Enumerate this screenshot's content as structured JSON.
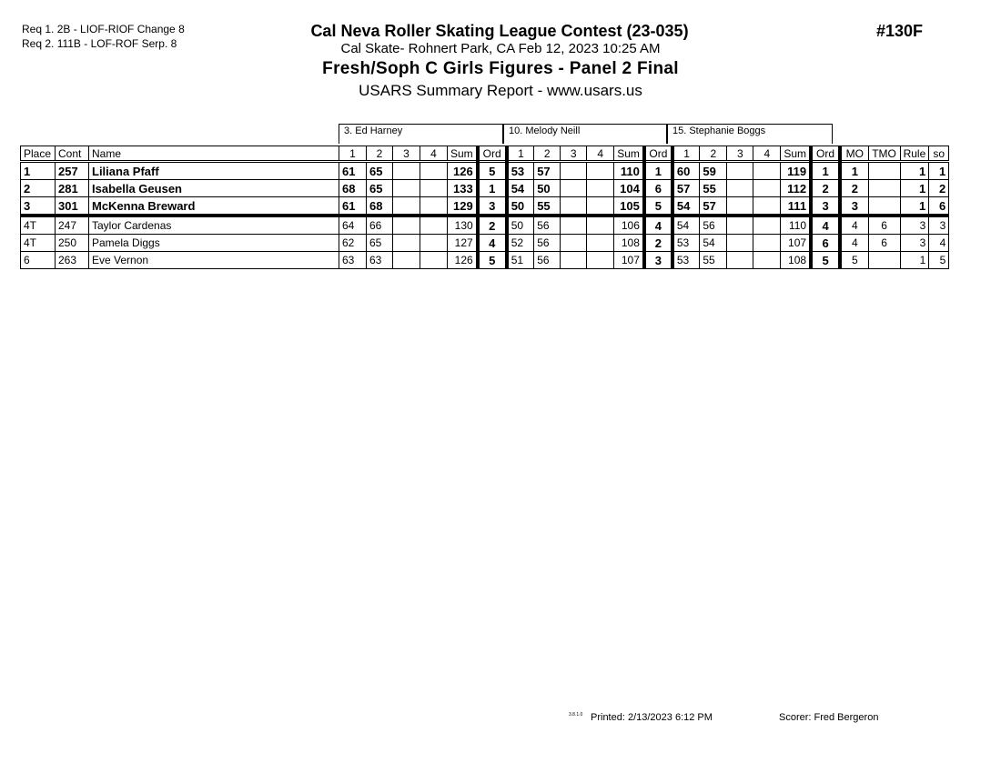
{
  "requirements": [
    "Req  1.  2B - LIOF-RIOF Change 8",
    "Req  2.  111B - LOF-ROF Serp. 8"
  ],
  "header": {
    "contest": "Cal Neva Roller Skating League Contest (23-035)",
    "location": "Cal Skate- Rohnert Park, CA  Feb 12, 2023  10:25 AM",
    "event": "Fresh/Soph C Girls Figures - Panel 2 Final",
    "report": "USARS Summary Report - www.usars.us",
    "event_number": "#130F"
  },
  "judges": [
    "3.  Ed Harney",
    "10.  Melody Neill",
    "15.  Stephanie Boggs"
  ],
  "columns": {
    "place": "Place",
    "cont": "Cont",
    "name": "Name",
    "s1": "1",
    "s2": "2",
    "s3": "3",
    "s4": "4",
    "sum": "Sum",
    "ord": "Ord",
    "mo": "MO",
    "tmo": "TMO",
    "rule": "Rule",
    "so": "so"
  },
  "rows": [
    {
      "place": "1",
      "cont": "257",
      "name": "Liliana Pfaff",
      "j": [
        [
          "61",
          "65",
          "",
          "",
          "126",
          "5"
        ],
        [
          "53",
          "57",
          "",
          "",
          "110",
          "1"
        ],
        [
          "60",
          "59",
          "",
          "",
          "119",
          "1"
        ]
      ],
      "mo": "1",
      "tmo": "",
      "rule": "1",
      "so": "1"
    },
    {
      "place": "2",
      "cont": "281",
      "name": "Isabella Geusen",
      "j": [
        [
          "68",
          "65",
          "",
          "",
          "133",
          "1"
        ],
        [
          "54",
          "50",
          "",
          "",
          "104",
          "6"
        ],
        [
          "57",
          "55",
          "",
          "",
          "112",
          "2"
        ]
      ],
      "mo": "2",
      "tmo": "",
      "rule": "1",
      "so": "2"
    },
    {
      "place": "3",
      "cont": "301",
      "name": "McKenna Breward",
      "j": [
        [
          "61",
          "68",
          "",
          "",
          "129",
          "3"
        ],
        [
          "50",
          "55",
          "",
          "",
          "105",
          "5"
        ],
        [
          "54",
          "57",
          "",
          "",
          "111",
          "3"
        ]
      ],
      "mo": "3",
      "tmo": "",
      "rule": "1",
      "so": "6"
    },
    {
      "place": "4T",
      "cont": "247",
      "name": "Taylor Cardenas",
      "j": [
        [
          "64",
          "66",
          "",
          "",
          "130",
          "2"
        ],
        [
          "50",
          "56",
          "",
          "",
          "106",
          "4"
        ],
        [
          "54",
          "56",
          "",
          "",
          "110",
          "4"
        ]
      ],
      "mo": "4",
      "tmo": "6",
      "rule": "3",
      "so": "3"
    },
    {
      "place": "4T",
      "cont": "250",
      "name": "Pamela Diggs",
      "j": [
        [
          "62",
          "65",
          "",
          "",
          "127",
          "4"
        ],
        [
          "52",
          "56",
          "",
          "",
          "108",
          "2"
        ],
        [
          "53",
          "54",
          "",
          "",
          "107",
          "6"
        ]
      ],
      "mo": "4",
      "tmo": "6",
      "rule": "3",
      "so": "4"
    },
    {
      "place": "6",
      "cont": "263",
      "name": "Eve Vernon",
      "j": [
        [
          "63",
          "63",
          "",
          "",
          "126",
          "5"
        ],
        [
          "51",
          "56",
          "",
          "",
          "107",
          "3"
        ],
        [
          "53",
          "55",
          "",
          "",
          "108",
          "5"
        ]
      ],
      "mo": "5",
      "tmo": "",
      "rule": "1",
      "so": "5"
    }
  ],
  "footer": {
    "version": "3.8.1.0",
    "printed": "Printed:  2/13/2023  6:12 PM",
    "scorer": "Scorer:   Fred Bergeron"
  }
}
